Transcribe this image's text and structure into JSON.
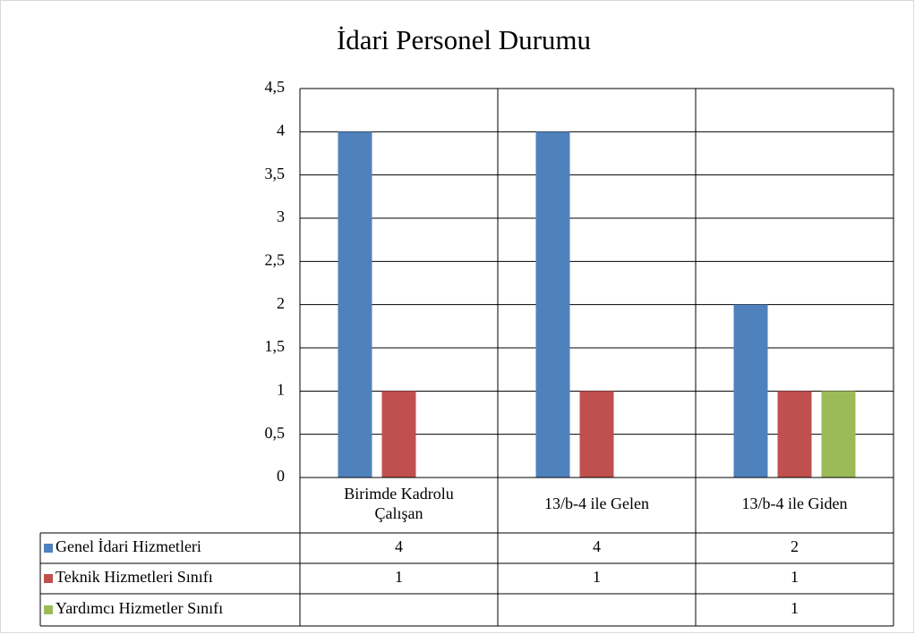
{
  "chart_data": {
    "type": "bar",
    "title": "İdari Personel Durumu",
    "categories": [
      "Birimde Kadrolu Çalışan",
      "13/b-4 ile Gelen",
      "13/b-4 ile Giden"
    ],
    "series": [
      {
        "name": "Genel İdari Hizmetleri",
        "color": "#4f81bd",
        "values": [
          4,
          4,
          2
        ]
      },
      {
        "name": "Teknik Hizmetleri Sınıfı",
        "color": "#c0504d",
        "values": [
          1,
          1,
          1
        ]
      },
      {
        "name": "Yardımcı Hizmetler Sınıfı",
        "color": "#9bbb59",
        "values": [
          null,
          null,
          1
        ]
      }
    ],
    "ylim": [
      0,
      4.5
    ],
    "yticks": [
      0,
      {
        "value": 0.5,
        "label": "0,5"
      },
      1,
      {
        "value": 1.5,
        "label": "1,5"
      },
      2,
      {
        "value": 2.5,
        "label": "2,5"
      },
      3,
      {
        "value": 3.5,
        "label": "3,5"
      },
      4,
      {
        "value": 4.5,
        "label": "4,5"
      }
    ],
    "grid": true,
    "data_table": true
  }
}
